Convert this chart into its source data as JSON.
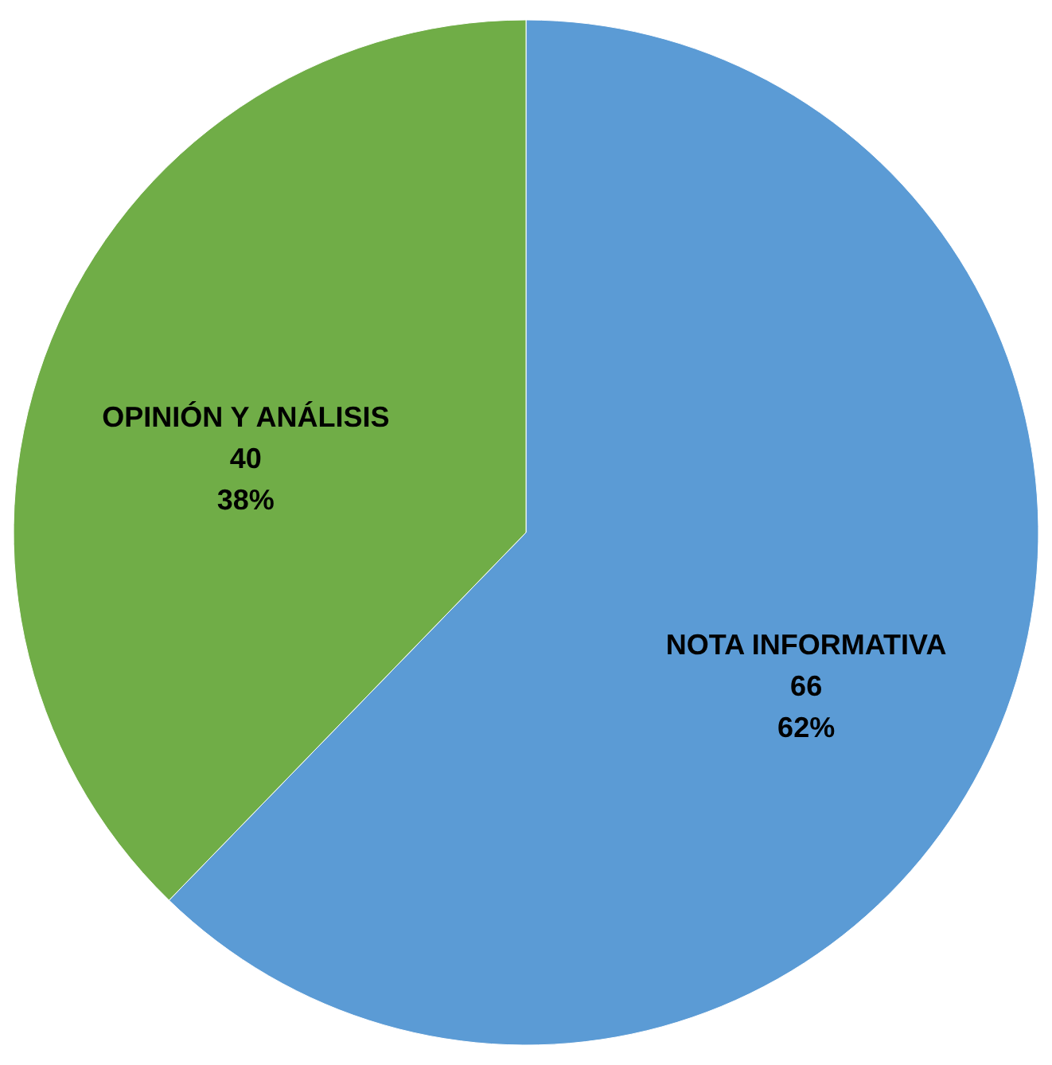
{
  "chart_data": {
    "type": "pie",
    "categories": [
      "NOTA INFORMATIVA",
      "OPINIÓN Y ANÁLISIS"
    ],
    "values": [
      66,
      40
    ],
    "colors": [
      "#5b9bd5",
      "#70ad47"
    ],
    "value_labels": [
      "66\n62%",
      "40\n38%"
    ]
  }
}
